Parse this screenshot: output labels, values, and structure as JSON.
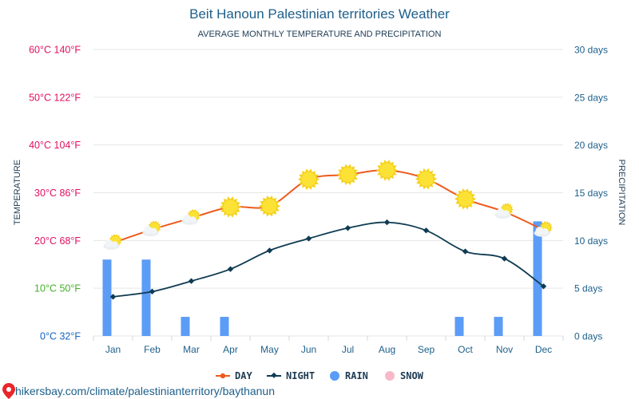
{
  "header": {
    "title": "Beit Hanoun Palestinian territories Weather",
    "subtitle": "AVERAGE MONTHLY TEMPERATURE AND PRECIPITATION"
  },
  "footer": {
    "url": "hikersbay.com/climate/palestinianterritory/baythanun"
  },
  "colors": {
    "day": "#ee5a1c",
    "night": "#0f3b52",
    "rain": "#5b9cf6",
    "snow": "#f7b8c8",
    "axis_text": "#1d5f8a"
  },
  "chart_data": {
    "type": "line",
    "title": "Beit Hanoun Palestinian territories Weather",
    "subtitle": "AVERAGE MONTHLY TEMPERATURE AND PRECIPITATION",
    "categories": [
      "Jan",
      "Feb",
      "Mar",
      "Apr",
      "May",
      "Jun",
      "Jul",
      "Aug",
      "Sep",
      "Oct",
      "Nov",
      "Dec"
    ],
    "ylabel_left": "TEMPERATURE",
    "ylabel_right": "PRECIPITATION",
    "ylim_left": [
      0,
      60
    ],
    "ylim_right": [
      0,
      30
    ],
    "left_ticks": [
      {
        "value": 0,
        "label": "0°C 32°F",
        "color": "#1565c0"
      },
      {
        "value": 10,
        "label": "10°C 50°F",
        "color": "#43b02a"
      },
      {
        "value": 20,
        "label": "20°C 68°F",
        "color": "#e0115f"
      },
      {
        "value": 30,
        "label": "30°C 86°F",
        "color": "#e0115f"
      },
      {
        "value": 40,
        "label": "40°C 104°F",
        "color": "#e0115f"
      },
      {
        "value": 50,
        "label": "50°C 122°F",
        "color": "#e0115f"
      },
      {
        "value": 60,
        "label": "60°C 140°F",
        "color": "#e0115f"
      }
    ],
    "right_ticks": [
      {
        "value": 0,
        "label": "0 days"
      },
      {
        "value": 5,
        "label": "5 days"
      },
      {
        "value": 10,
        "label": "10 days"
      },
      {
        "value": 15,
        "label": "15 days"
      },
      {
        "value": 20,
        "label": "20 days"
      },
      {
        "value": 25,
        "label": "25 days"
      },
      {
        "value": 30,
        "label": "30 days"
      }
    ],
    "series": [
      {
        "name": "DAY",
        "axis": "left",
        "type": "line",
        "values": [
          19.5,
          22.3,
          24.7,
          27,
          27.2,
          32.8,
          33.8,
          34.7,
          32.9,
          28.7,
          26,
          22.2
        ],
        "icons": [
          "partly-cloudy-icon",
          "partly-cloudy-icon",
          "partly-cloudy-icon",
          "sun-icon",
          "sun-icon",
          "sun-icon",
          "sun-icon",
          "sun-icon",
          "sun-icon",
          "sun-icon",
          "partly-cloudy-icon",
          "partly-cloudy-icon"
        ]
      },
      {
        "name": "NIGHT",
        "axis": "left",
        "type": "line",
        "values": [
          8.2,
          9.3,
          11.5,
          14,
          17.9,
          20.4,
          22.6,
          23.8,
          22.1,
          17.7,
          16.2,
          10.4
        ]
      },
      {
        "name": "RAIN",
        "axis": "right",
        "type": "bar",
        "values": [
          8,
          8,
          2,
          2,
          0,
          0,
          0,
          0,
          0,
          2,
          2,
          12
        ]
      },
      {
        "name": "SNOW",
        "axis": "right",
        "type": "bar",
        "values": [
          0,
          0,
          0,
          0,
          0,
          0,
          0,
          0,
          0,
          0,
          0,
          0
        ]
      }
    ],
    "grid": true,
    "legend": "bottom-center",
    "legend_items": [
      "DAY",
      "NIGHT",
      "RAIN",
      "SNOW"
    ]
  }
}
